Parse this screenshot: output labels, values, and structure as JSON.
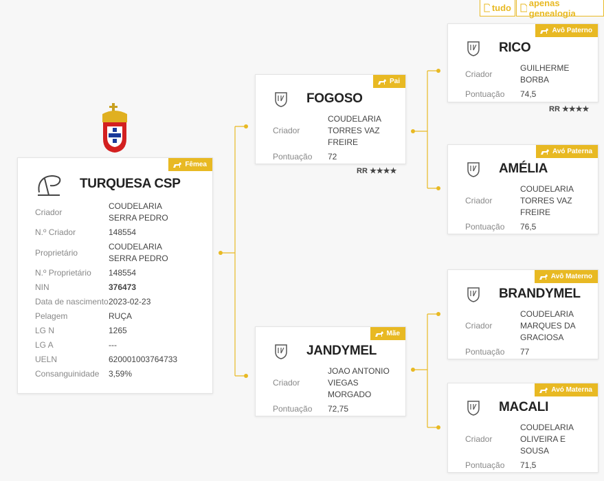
{
  "toolbar": {
    "all": "tudo",
    "genealogy": "apenas genealogia"
  },
  "subject": {
    "badge": "Fêmea",
    "name": "TURQUESA CSP",
    "fields": [
      {
        "label": "Criador",
        "value": "COUDELARIA SERRA PEDRO"
      },
      {
        "label": "N.º Criador",
        "value": "148554"
      },
      {
        "label": "Proprietário",
        "value": "COUDELARIA SERRA PEDRO"
      },
      {
        "label": "N.º Proprietário",
        "value": "148554"
      },
      {
        "label": "NIN",
        "value": "376473"
      },
      {
        "label": "Data de nascimento",
        "value": "2023-02-23"
      },
      {
        "label": "Pelagem",
        "value": "RUÇA"
      },
      {
        "label": "LG N",
        "value": "1265"
      },
      {
        "label": "LG A",
        "value": "---"
      },
      {
        "label": "UELN",
        "value": "620001003764733"
      },
      {
        "label": "Consanguinidade",
        "value": "3,59%"
      }
    ]
  },
  "parents": [
    {
      "badge": "Pai",
      "name": "FOGOSO",
      "fields": [
        {
          "label": "Criador",
          "value": "COUDELARIA TORRES VAZ FREIRE"
        },
        {
          "label": "Pontuação",
          "value": "72"
        }
      ],
      "rating": "RR ★★★★"
    },
    {
      "badge": "Mãe",
      "name": "JANDYMEL",
      "fields": [
        {
          "label": "Criador",
          "value": "JOAO ANTONIO VIEGAS MORGADO"
        },
        {
          "label": "Pontuação",
          "value": "72,75"
        }
      ]
    }
  ],
  "grandparents": [
    {
      "badge": "Avô Paterno",
      "name": "RICO",
      "fields": [
        {
          "label": "Criador",
          "value": "GUILHERME BORBA"
        },
        {
          "label": "Pontuação",
          "value": "74,5"
        }
      ],
      "rating": "RR ★★★★"
    },
    {
      "badge": "Avó Paterna",
      "name": "AMÉLIA",
      "fields": [
        {
          "label": "Criador",
          "value": "COUDELARIA TORRES VAZ FREIRE"
        },
        {
          "label": "Pontuação",
          "value": "76,5"
        }
      ]
    },
    {
      "badge": "Avô Materno",
      "name": "BRANDYMEL",
      "fields": [
        {
          "label": "Criador",
          "value": "COUDELARIA MARQUES DA GRACIOSA"
        },
        {
          "label": "Pontuação",
          "value": "77"
        }
      ]
    },
    {
      "badge": "Avó Materna",
      "name": "MACALI",
      "fields": [
        {
          "label": "Criador",
          "value": "COUDELARIA OLIVEIRA E SOUSA"
        },
        {
          "label": "Pontuação",
          "value": "71,5"
        }
      ]
    }
  ]
}
